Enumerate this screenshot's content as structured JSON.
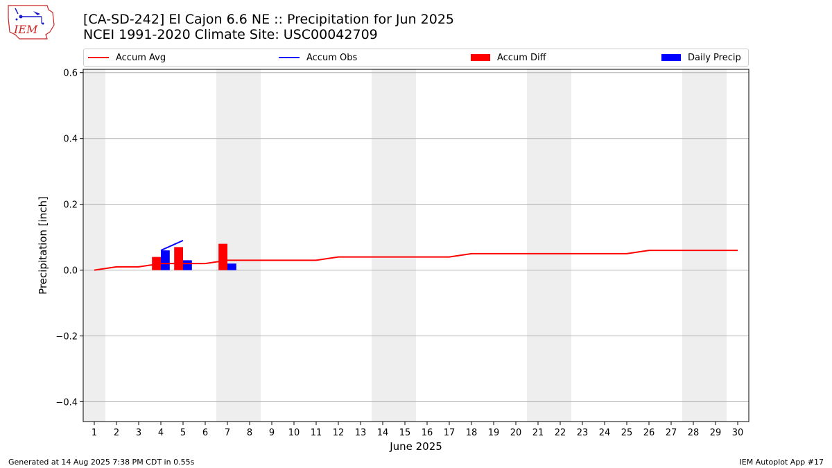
{
  "header": {
    "title_line1": "[CA-SD-242] El Cajon 6.6 NE :: Precipitation for Jun 2025",
    "title_line2": "NCEI 1991-2020 Climate Site: USC00042709"
  },
  "logo": {
    "text": "IEM",
    "color": "#cc2222"
  },
  "legend": [
    {
      "label": "Accum Avg",
      "kind": "line",
      "color": "#ff0000"
    },
    {
      "label": "Accum Obs",
      "kind": "line",
      "color": "#0000ff"
    },
    {
      "label": "Accum Diff",
      "kind": "box",
      "color": "#ff0000"
    },
    {
      "label": "Daily Precip",
      "kind": "box",
      "color": "#0000ff"
    }
  ],
  "chart_data": {
    "type": "bar",
    "xlabel": "June 2025",
    "ylabel": "Precipitation [inch]",
    "xlim": [
      0.5,
      30.5
    ],
    "ylim": [
      -0.46,
      0.61
    ],
    "xticks": [
      1,
      2,
      3,
      4,
      5,
      6,
      7,
      8,
      9,
      10,
      11,
      12,
      13,
      14,
      15,
      16,
      17,
      18,
      19,
      20,
      21,
      22,
      23,
      24,
      25,
      26,
      27,
      28,
      29,
      30
    ],
    "yticks": [
      -0.4,
      -0.2,
      0.0,
      0.2,
      0.4,
      0.6
    ],
    "ytick_labels": [
      "−0.4",
      "−0.2",
      "0.0",
      "0.2",
      "0.4",
      "0.6"
    ],
    "grid": "y",
    "weekend_shading": [
      [
        0.5,
        1.5
      ],
      [
        6.5,
        8.5
      ],
      [
        13.5,
        15.5
      ],
      [
        20.5,
        22.5
      ],
      [
        27.5,
        29.5
      ]
    ],
    "shade_color": "#eeeeee",
    "series": [
      {
        "name": "Accum Avg",
        "type": "line",
        "color": "#ff0000",
        "x": [
          1,
          2,
          3,
          4,
          5,
          6,
          7,
          8,
          9,
          10,
          11,
          12,
          13,
          14,
          15,
          16,
          17,
          18,
          19,
          20,
          21,
          22,
          23,
          24,
          25,
          26,
          27,
          28,
          29,
          30
        ],
        "values": [
          0.0,
          0.01,
          0.01,
          0.02,
          0.02,
          0.02,
          0.03,
          0.03,
          0.03,
          0.03,
          0.03,
          0.04,
          0.04,
          0.04,
          0.04,
          0.04,
          0.04,
          0.05,
          0.05,
          0.05,
          0.05,
          0.05,
          0.05,
          0.05,
          0.05,
          0.06,
          0.06,
          0.06,
          0.06,
          0.06
        ]
      },
      {
        "name": "Accum Obs",
        "type": "line",
        "color": "#0000ff",
        "x": [
          4,
          5
        ],
        "values": [
          0.06,
          0.09
        ]
      },
      {
        "name": "Accum Diff",
        "type": "bar",
        "color": "#ff0000",
        "x": [
          4,
          5,
          7
        ],
        "values": [
          0.04,
          0.07,
          0.08
        ]
      },
      {
        "name": "Daily Precip",
        "type": "bar",
        "color": "#0000ff",
        "x": [
          4,
          5,
          7
        ],
        "values": [
          0.06,
          0.03,
          0.02
        ]
      }
    ]
  },
  "footer": {
    "left": "Generated at 14 Aug 2025 7:38 PM CDT in 0.55s",
    "right": "IEM Autoplot App #17"
  }
}
